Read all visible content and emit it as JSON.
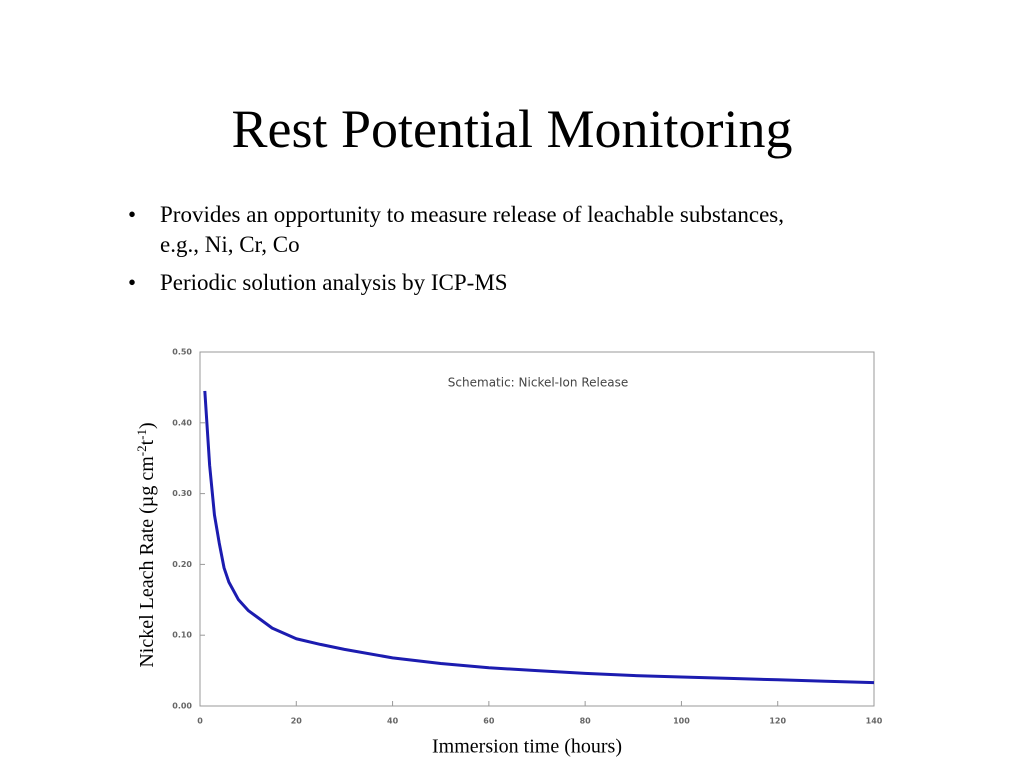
{
  "title": "Rest Potential Monitoring",
  "bullets": [
    "Provides an opportunity to measure release of leachable substances, e.g., Ni, Cr, Co",
    "Periodic solution analysis by ICP-MS"
  ],
  "chart_data": {
    "type": "line",
    "title": "Schematic: Nickel-Ion Release",
    "x_label": "Immersion time (hours)",
    "y_label": [
      "Nickel Leach Rate (µg cm",
      "-2",
      "t",
      "-1",
      ")"
    ],
    "x": [
      1,
      2,
      3,
      4,
      5,
      6,
      8,
      10,
      12,
      15,
      20,
      25,
      30,
      40,
      50,
      60,
      70,
      80,
      90,
      100,
      110,
      120,
      130,
      140
    ],
    "values": [
      0.445,
      0.34,
      0.27,
      0.23,
      0.195,
      0.175,
      0.15,
      0.135,
      0.125,
      0.11,
      0.095,
      0.087,
      0.08,
      0.068,
      0.06,
      0.054,
      0.05,
      0.046,
      0.043,
      0.041,
      0.039,
      0.037,
      0.035,
      0.033
    ],
    "color": "#1c1cb0",
    "xlim": [
      0,
      140
    ],
    "xticks": [
      0,
      20,
      40,
      60,
      80,
      100,
      120,
      140
    ],
    "ylim": [
      0,
      0.5
    ],
    "yticks": [
      {
        "value": 0,
        "label": "0.00"
      },
      {
        "value": 0.1,
        "label": "0.10"
      },
      {
        "value": 0.2,
        "label": "0.20"
      },
      {
        "value": 0.3,
        "label": "0.30"
      },
      {
        "value": 0.4,
        "label": "0.40"
      },
      {
        "value": 0.5,
        "label": "0.50"
      }
    ],
    "grid": false
  }
}
